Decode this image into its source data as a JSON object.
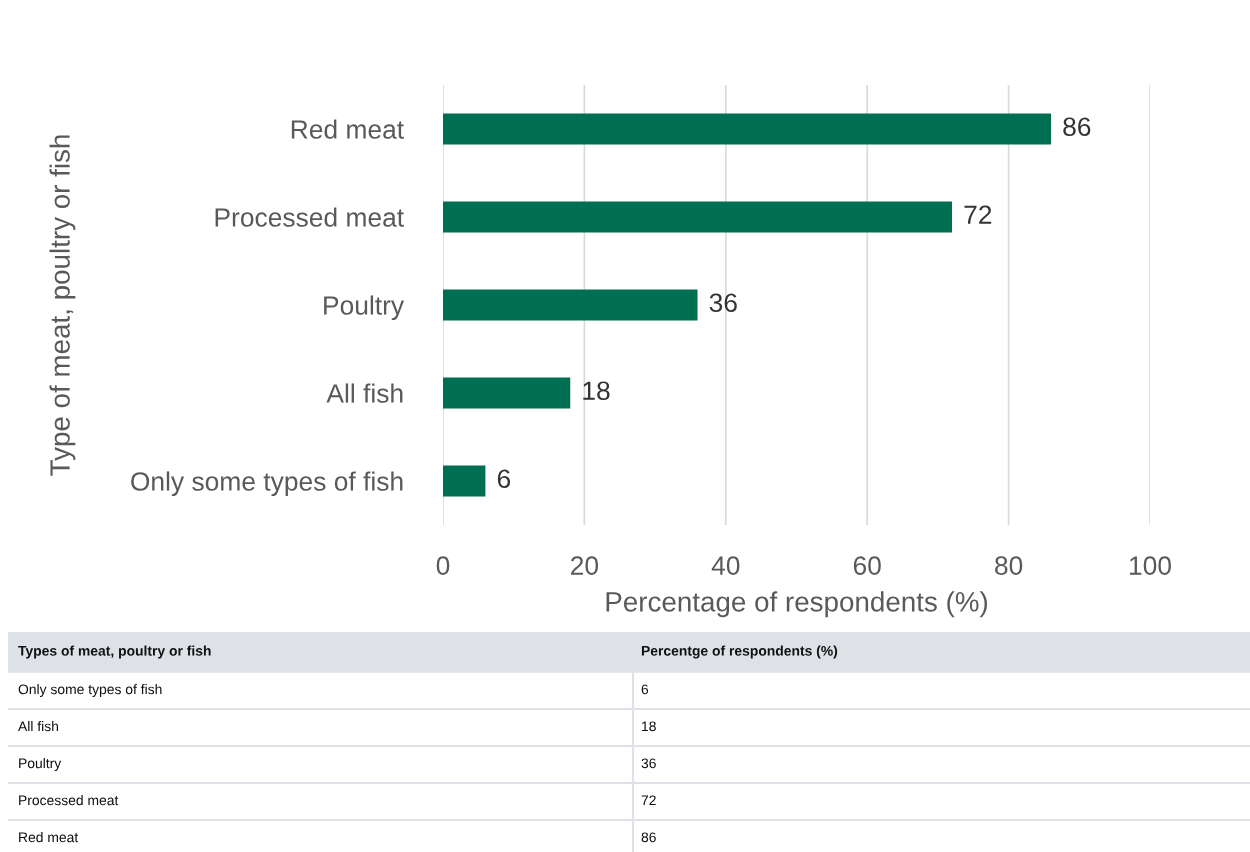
{
  "chart_data": {
    "type": "bar",
    "orientation": "horizontal",
    "xlabel": "Percentage of respondents (%)",
    "ylabel": "Type of meat, poultry or fish",
    "categories": [
      "Red meat",
      "Processed meat",
      "Poultry",
      "All fish",
      "Only some types of fish"
    ],
    "values": [
      86,
      72,
      36,
      18,
      6
    ],
    "color": "#006e51",
    "xlim": [
      0,
      100
    ],
    "xticks": [
      0,
      20,
      40,
      60,
      80,
      100
    ],
    "grid": "x",
    "data_labels": true,
    "legend": false,
    "annotations": [
      "Types of meat, poultry or fish",
      "Percentge of respondents (%)",
      "6",
      "18",
      "36",
      "72",
      "86"
    ]
  }
}
